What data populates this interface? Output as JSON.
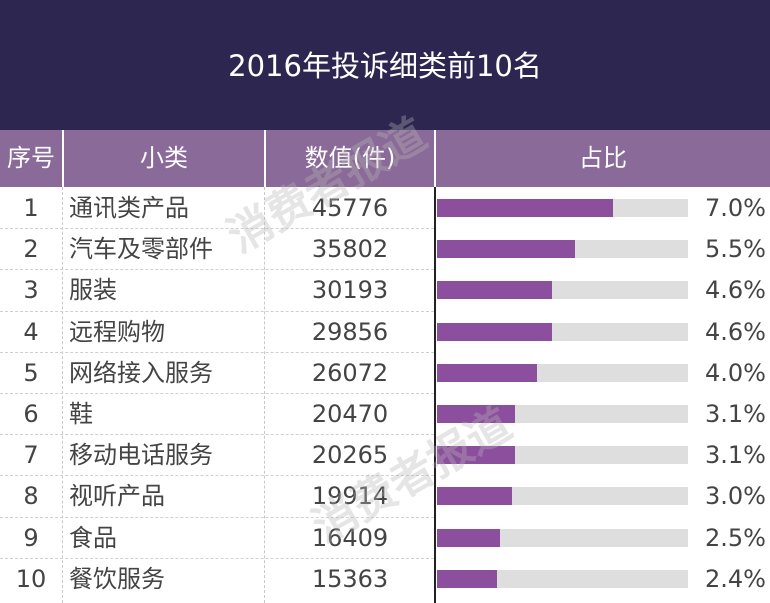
{
  "title": "2016年投诉细类前10名",
  "headers": {
    "index": "序号",
    "category": "小类",
    "value": "数值(件)",
    "share": "占比"
  },
  "watermark": "消费者报道",
  "colors": {
    "title_bg": "#2d2650",
    "header_bg": "#8a6a98",
    "bar_fill": "#8c4f9e",
    "bar_track": "#dedede"
  },
  "chart_data": {
    "type": "table",
    "title": "2016年投诉细类前10名",
    "columns": [
      "序号",
      "小类",
      "数值(件)",
      "占比"
    ],
    "bar_max_percent": 10,
    "rows": [
      {
        "index": "1",
        "category": "通讯类产品",
        "value": "45776",
        "share": 7.0,
        "share_label": "7.0%"
      },
      {
        "index": "2",
        "category": "汽车及零部件",
        "value": "35802",
        "share": 5.5,
        "share_label": "5.5%"
      },
      {
        "index": "3",
        "category": "服装",
        "value": "30193",
        "share": 4.6,
        "share_label": "4.6%"
      },
      {
        "index": "4",
        "category": "远程购物",
        "value": "29856",
        "share": 4.6,
        "share_label": "4.6%"
      },
      {
        "index": "5",
        "category": "网络接入服务",
        "value": "26072",
        "share": 4.0,
        "share_label": "4.0%"
      },
      {
        "index": "6",
        "category": "鞋",
        "value": "20470",
        "share": 3.1,
        "share_label": "3.1%"
      },
      {
        "index": "7",
        "category": "移动电话服务",
        "value": "20265",
        "share": 3.1,
        "share_label": "3.1%"
      },
      {
        "index": "8",
        "category": "视听产品",
        "value": "19914",
        "share": 3.0,
        "share_label": "3.0%"
      },
      {
        "index": "9",
        "category": "食品",
        "value": "16409",
        "share": 2.5,
        "share_label": "2.5%"
      },
      {
        "index": "10",
        "category": "餐饮服务",
        "value": "15363",
        "share": 2.4,
        "share_label": "2.4%"
      }
    ]
  }
}
